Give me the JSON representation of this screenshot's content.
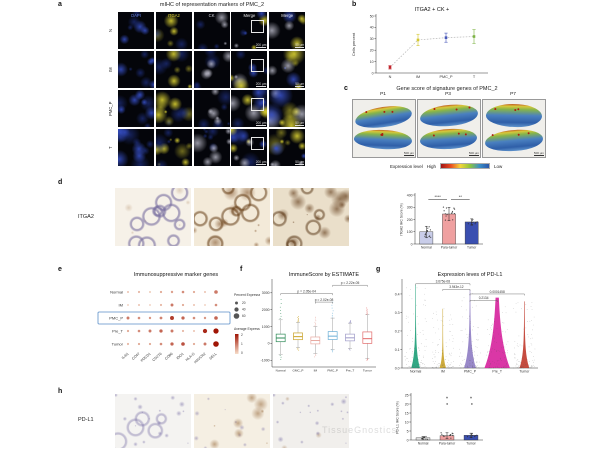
{
  "watermark": "TissueGnostics",
  "panel_a": {
    "label": "a",
    "title": "mIHC of representation markers of PMC_2",
    "columns": [
      {
        "label": "DAPI",
        "color": "#6a85e8"
      },
      {
        "label": "ITGA2",
        "color": "#ddd23a"
      },
      {
        "label": "CK",
        "color": "#d8d8e0"
      },
      {
        "label": "Merge",
        "color": "#e8e8e8"
      },
      {
        "label": "Merge",
        "color": "#e8e8e8"
      }
    ],
    "rows": [
      "N",
      "IM",
      "PMC_P",
      "T"
    ],
    "scale_bar_merge": "200 μm",
    "scale_bar_zoom": "50 μm"
  },
  "panel_b": {
    "label": "b"
  },
  "panel_c": {
    "label": "c",
    "title": "Gene score of signature genes of PMC_2",
    "samples": [
      "P1",
      "P3",
      "P7"
    ],
    "scale_bar": "500 μm",
    "legend_label": "Expression level",
    "legend_high": "High",
    "legend_low": "Low",
    "gradient": [
      "#a01515",
      "#e84a20",
      "#f5d53a",
      "#8fc63a",
      "#3a8fc6",
      "#2a55a8"
    ]
  },
  "panel_d": {
    "label": "d",
    "row_label": "ITGA2"
  },
  "panel_e": {
    "label": "e"
  },
  "panel_f": {
    "label": "f"
  },
  "panel_g": {
    "label": "g"
  },
  "panel_h": {
    "label": "h",
    "row_label": "PD-L1"
  },
  "chart_data": [
    {
      "id": "b",
      "type": "scatter",
      "title": "ITGA2 + CK +",
      "ylabel": "Cells percent",
      "ylim": [
        0,
        50
      ],
      "yticks": [
        0,
        10,
        20,
        30,
        40,
        50
      ],
      "categories": [
        "N",
        "IM",
        "PMC_P",
        "T"
      ],
      "values": [
        5,
        29,
        31,
        32
      ],
      "errors": [
        1.5,
        5,
        4,
        6
      ],
      "colors": [
        "#c0242b",
        "#d4c832",
        "#4656b8",
        "#7cb342"
      ],
      "line_color": "#b8b8b8"
    },
    {
      "id": "d",
      "type": "bar",
      "ylabel": "ITGA2 IHC Score (%)",
      "ylim": [
        0,
        400
      ],
      "yticks": [
        0,
        100,
        200,
        300,
        400
      ],
      "categories": [
        "Normal",
        "Para-tumor",
        "Tumor"
      ],
      "values": [
        100,
        245,
        180
      ],
      "errors": [
        45,
        55,
        25
      ],
      "colors": [
        "#c9cde9",
        "#efa0a0",
        "#3a4fb0"
      ],
      "jitter": [
        14,
        14,
        10
      ],
      "significance": [
        {
          "from": 0,
          "to": 1,
          "label": "****",
          "y": 365
        },
        {
          "from": 1,
          "to": 2,
          "label": "**",
          "y": 365
        }
      ]
    },
    {
      "id": "e",
      "type": "dotplot",
      "title": "Immunosuppressive marker genes",
      "rows": [
        "Normal",
        "IM",
        "PMC_P",
        "Pre_T",
        "Tumor"
      ],
      "genes": [
        "IL4I1",
        "CD47",
        "PDCD1",
        "CD276",
        "CD86",
        "IDO1",
        "HLA-G",
        "HAVCR2",
        "SELL"
      ],
      "highlight_row": "PMC_P",
      "highlight_color": "#5b8fc9",
      "dot_low_color": "#f7ddc9",
      "dot_high_color": "#a01505",
      "percent": [
        [
          5,
          8,
          5,
          10,
          12,
          15,
          10,
          5,
          30
        ],
        [
          3,
          5,
          3,
          8,
          20,
          10,
          5,
          3,
          15
        ],
        [
          20,
          15,
          12,
          18,
          35,
          25,
          15,
          12,
          30
        ],
        [
          10,
          15,
          20,
          25,
          20,
          8,
          5,
          40,
          55
        ],
        [
          8,
          10,
          10,
          15,
          25,
          30,
          10,
          20,
          60
        ]
      ],
      "avg_expression": [
        [
          0.3,
          0.4,
          0.2,
          0.5,
          0.6,
          0.8,
          0.5,
          0.3,
          1.0
        ],
        [
          0.2,
          0.3,
          0.2,
          0.4,
          1.0,
          0.5,
          0.3,
          0.2,
          0.8
        ],
        [
          1.0,
          0.8,
          0.7,
          0.9,
          1.6,
          1.2,
          0.8,
          0.7,
          1.2
        ],
        [
          0.5,
          0.8,
          1.0,
          1.2,
          1.0,
          0.4,
          0.3,
          1.8,
          2.0
        ],
        [
          0.4,
          0.5,
          0.5,
          0.8,
          1.2,
          1.4,
          0.5,
          1.0,
          2.0
        ]
      ],
      "legend": {
        "percent_title": "Percent Expressed",
        "percent_values": [
          20,
          40,
          60
        ],
        "avg_title": "Average Expression",
        "avg_ticks": [
          0,
          1,
          2
        ]
      }
    },
    {
      "id": "f",
      "type": "box",
      "title": "ImmuneScore by ESTIMATE",
      "ylim": [
        -1400,
        3700
      ],
      "yticks": [
        -1000,
        0,
        1000,
        2000,
        3000
      ],
      "categories": [
        "Normal",
        "GMC_P",
        "IM",
        "PMC_P",
        "Pre_T",
        "Tumor"
      ],
      "colors": [
        "#2e8b57",
        "#c9a227",
        "#e8a8a0",
        "#6baed6",
        "#9e9ac8",
        "#e26a6a"
      ],
      "boxes": [
        {
          "q1": 100,
          "median": 320,
          "q3": 550,
          "lo": -650,
          "hi": 1400,
          "out_hi": 2600,
          "out_lo": -950
        },
        {
          "q1": 220,
          "median": 400,
          "q3": 620,
          "lo": -250,
          "hi": 1250,
          "out_hi": 1600,
          "out_lo": -400
        },
        {
          "q1": -30,
          "median": 170,
          "q3": 380,
          "lo": -600,
          "hi": 1000,
          "out_hi": 1550,
          "out_lo": -800
        },
        {
          "q1": 230,
          "median": 430,
          "q3": 700,
          "lo": -350,
          "hi": 1500,
          "out_hi": 2450,
          "out_lo": -500
        },
        {
          "q1": 150,
          "median": 330,
          "q3": 550,
          "lo": -300,
          "hi": 1200,
          "out_hi": 1350,
          "out_lo": -400
        },
        {
          "q1": 0,
          "median": 280,
          "q3": 680,
          "lo": -900,
          "hi": 1700,
          "out_hi": 2100,
          "out_lo": -1000
        }
      ],
      "significance": [
        {
          "from": 2,
          "to": 3,
          "label": "p = 2.02e-08",
          "y": 2450
        },
        {
          "from": 0,
          "to": 3,
          "label": "p = 2.05e-04",
          "y": 2950
        },
        {
          "from": 3,
          "to": 5,
          "label": "p = 2.22e-05",
          "y": 3450
        }
      ]
    },
    {
      "id": "g",
      "type": "violin",
      "title": "Expression leves of PD-L1",
      "ylim": [
        0,
        0.47
      ],
      "yticks": [
        0.0,
        0.1,
        0.2,
        0.3,
        0.4
      ],
      "categories": [
        "Normal",
        "IM",
        "PMC_P",
        "Pre_T",
        "Tumor"
      ],
      "colors": [
        "#1b9e77",
        "#c9a227",
        "#8e7cc3",
        "#d6219c",
        "#c0392b"
      ],
      "max_value": [
        0.45,
        0.32,
        0.42,
        0.38,
        0.36
      ],
      "bulge_width": [
        0.3,
        0.22,
        0.42,
        0.92,
        0.34
      ],
      "spike": [
        6,
        7,
        4.5,
        2.2,
        5
      ],
      "significance": [
        {
          "from": 0,
          "to": 2,
          "label": "3.675e-08",
          "y": 0.455
        },
        {
          "from": 1,
          "to": 2,
          "label": "3.943e-12",
          "y": 0.425
        },
        {
          "from": 2,
          "to": 4,
          "label": "0.0001458",
          "y": 0.4
        },
        {
          "from": 2,
          "to": 3,
          "label": "0.2134",
          "y": 0.365
        }
      ]
    },
    {
      "id": "h",
      "type": "bar",
      "ylabel": "PD-L1 IHC Score (%)",
      "ylim": [
        0,
        25
      ],
      "yticks": [
        0,
        5,
        10,
        15,
        20,
        25
      ],
      "categories": [
        "Normal",
        "Para-tumor",
        "Tumor"
      ],
      "values": [
        1.2,
        2.4,
        2.6
      ],
      "errors": [
        0.8,
        1.6,
        1.2
      ],
      "colors": [
        "#e4e4e4",
        "#efa0a0",
        "#3a4fb0"
      ],
      "jitter": [
        10,
        12,
        10
      ],
      "outliers": [
        {
          "cat": 1,
          "value": 20
        },
        {
          "cat": 2,
          "value": 20
        }
      ],
      "sig_marks": [
        {
          "cat": 1,
          "label": "*",
          "y": 22
        },
        {
          "cat": 2,
          "label": "*",
          "y": 22
        }
      ]
    }
  ]
}
